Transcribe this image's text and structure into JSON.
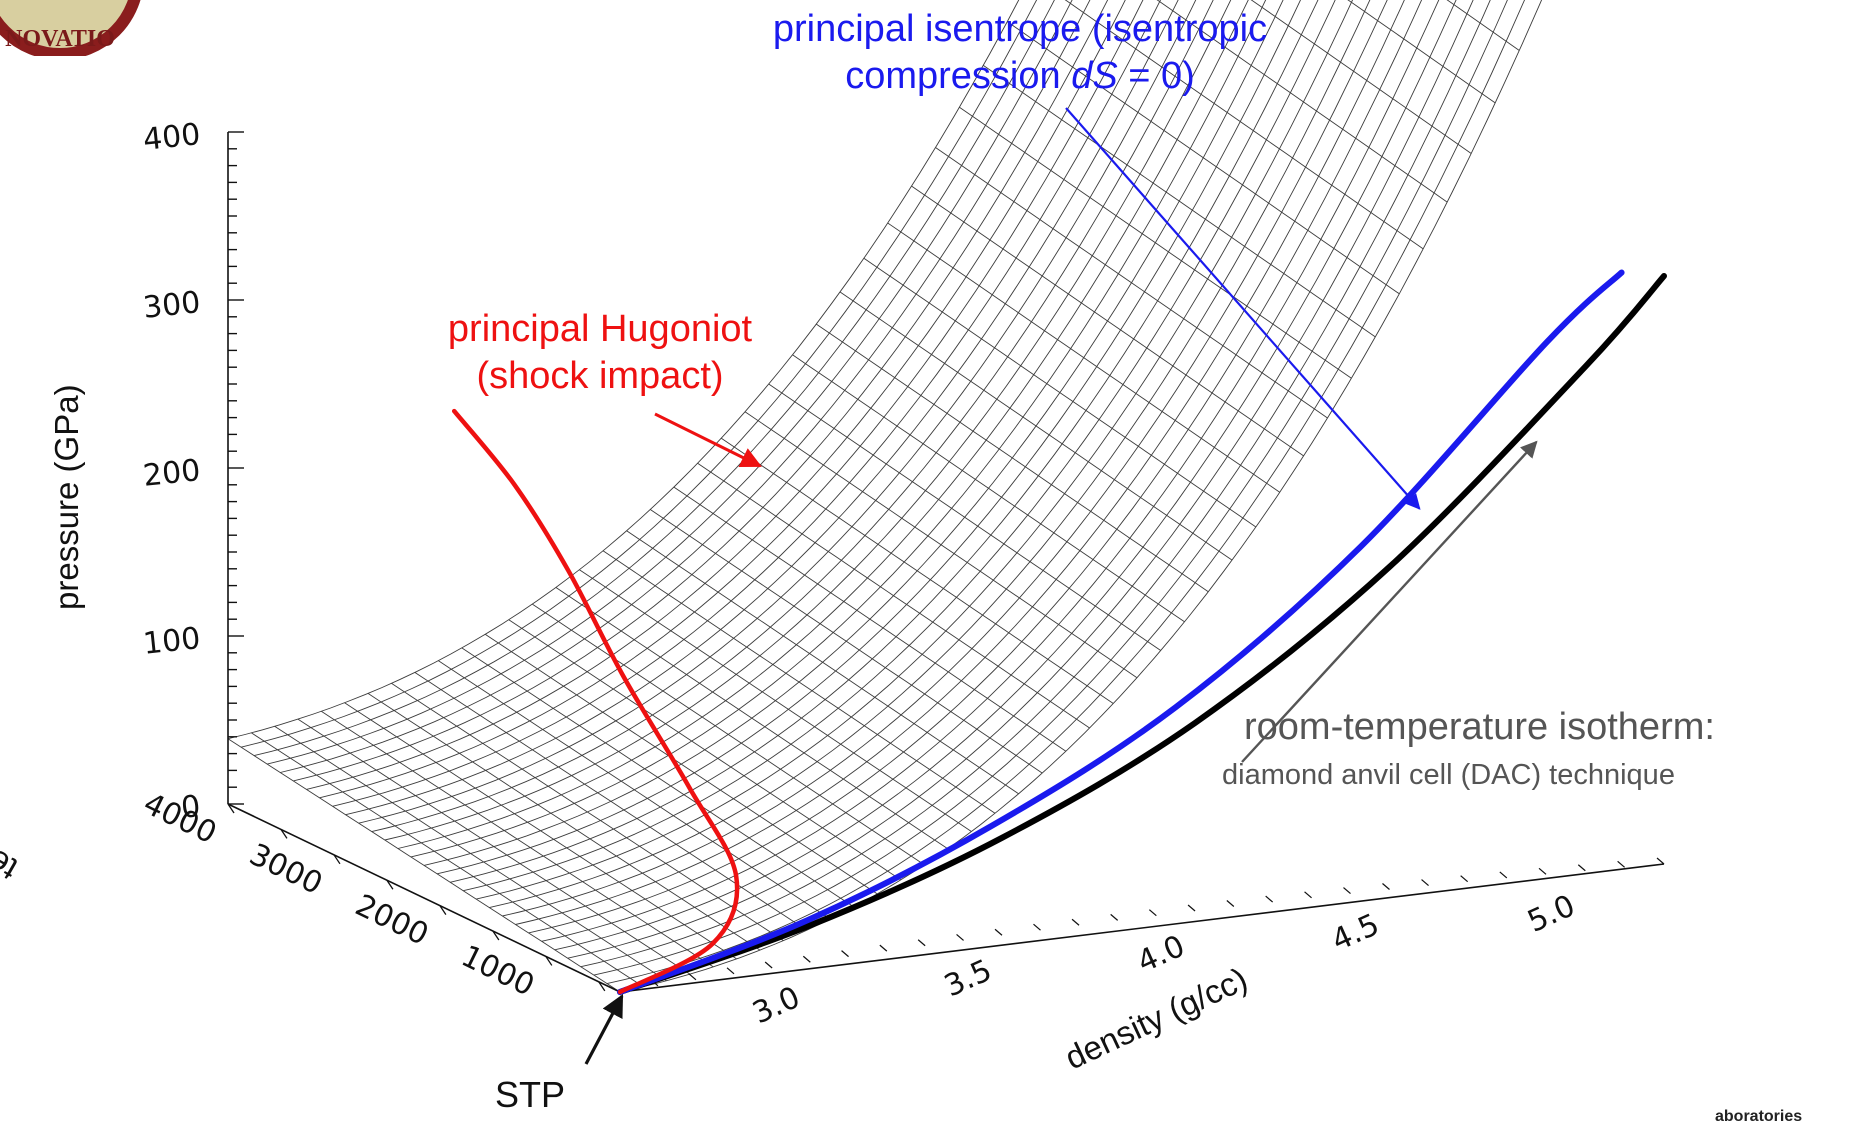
{
  "logo": {
    "text": "NOVATIO"
  },
  "footer": {
    "text": "aboratories"
  },
  "chart_data": {
    "type": "surface",
    "zlabel": "pressure (GPa)",
    "xlabel": "density (g/cc)",
    "ylabel": "temperature (K)",
    "zlim": [
      0,
      400
    ],
    "xlim": [
      2.5,
      5.2
    ],
    "ylim": [
      300,
      4000
    ],
    "z_ticks": [
      0,
      100,
      200,
      300,
      400
    ],
    "x_ticks": [
      3.0,
      3.5,
      4.0,
      4.5,
      5.0
    ],
    "y_ticks": [
      1000,
      2000,
      3000,
      4000
    ],
    "z_tick_labels": [
      "0",
      "100",
      "200",
      "300",
      "400"
    ],
    "x_tick_labels": [
      "3.0",
      "3.5",
      "4.0",
      "4.5",
      "5.0"
    ],
    "y_tick_labels": [
      "1000",
      "2000",
      "3000",
      "4000"
    ],
    "series": [
      {
        "color": "#000000",
        "points": [
          [
            2.5,
            300,
            0
          ],
          [
            3.0,
            300,
            22
          ],
          [
            3.5,
            300,
            58
          ],
          [
            4.0,
            300,
            112
          ],
          [
            4.5,
            300,
            192
          ],
          [
            5.0,
            300,
            300
          ],
          [
            5.2,
            300,
            350
          ]
        ]
      },
      {
        "color": "#1a1aee",
        "points": [
          [
            2.5,
            300,
            0
          ],
          [
            3.0,
            330,
            24
          ],
          [
            3.5,
            400,
            62
          ],
          [
            4.0,
            480,
            116
          ],
          [
            4.5,
            570,
            196
          ],
          [
            5.0,
            660,
            304
          ],
          [
            5.2,
            700,
            340
          ]
        ]
      },
      {
        "color": "#ee1111",
        "points": [
          [
            2.5,
            300,
            0
          ],
          [
            2.8,
            500,
            12
          ],
          [
            3.0,
            1000,
            30
          ],
          [
            3.1,
            1800,
            55
          ],
          [
            3.15,
            2600,
            95
          ],
          [
            3.17,
            3200,
            140
          ],
          [
            3.14,
            3600,
            180
          ],
          [
            3.08,
            3950,
            215
          ]
        ]
      }
    ],
    "annotations": [
      {
        "name": "isentrope",
        "text_lines": [
          "principal isentrope (isentropic",
          "compression "
        ],
        "italic": "dS",
        "tail": " = 0)",
        "color": "#1a1aee"
      },
      {
        "name": "hugoniot",
        "text_lines": [
          "principal Hugoniot",
          "(shock impact)"
        ],
        "color": "#ee1111"
      },
      {
        "name": "isotherm",
        "line1": "room-temperature isotherm:",
        "line2": "diamond anvil cell (DAC) technique",
        "color": "#555555"
      },
      {
        "name": "stp",
        "text": "STP",
        "color": "#111111"
      }
    ]
  }
}
